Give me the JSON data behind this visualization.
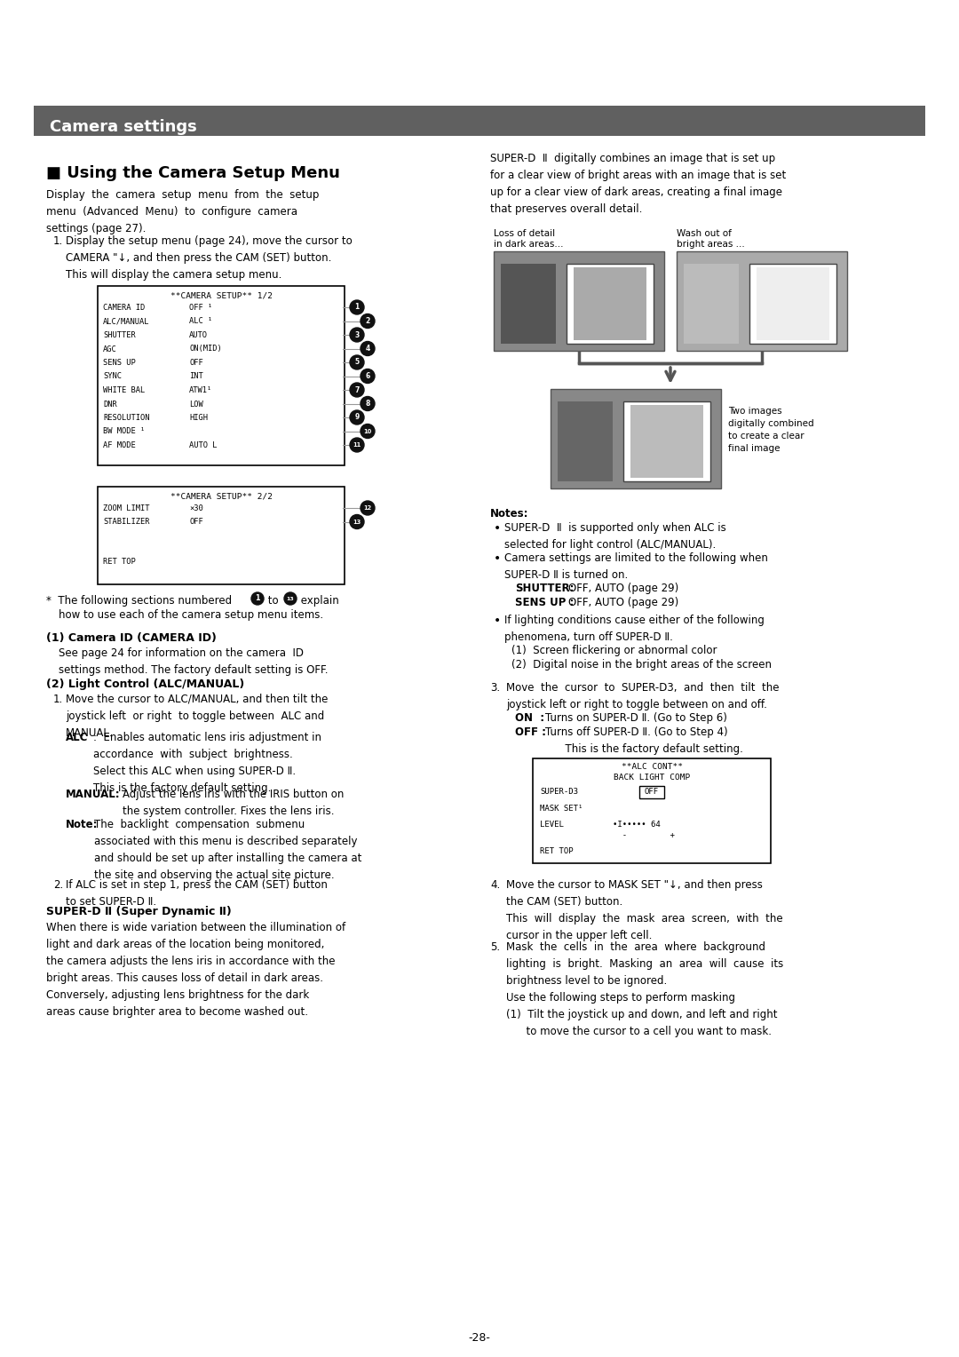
{
  "page_bg": "#ffffff",
  "header_bg": "#606060",
  "header_text": "Camera settings",
  "header_text_color": "#ffffff",
  "page_number": "-28-",
  "menu1_title": "**CAMERA SETUP** 1/2",
  "menu1_items": [
    [
      "CAMERA ID",
      "OFF ¹"
    ],
    [
      "ALC/MANUAL",
      "ALC ¹"
    ],
    [
      "SHUTTER",
      "AUTO"
    ],
    [
      "AGC",
      "ON(MID)"
    ],
    [
      "SENS UP",
      "OFF"
    ],
    [
      "SYNC",
      "INT"
    ],
    [
      "WHITE BAL",
      "ATW1¹"
    ],
    [
      "DNR",
      "LOW"
    ],
    [
      "RESOLUTION",
      "HIGH"
    ],
    [
      "BW MODE ¹",
      ""
    ],
    [
      "AF MODE",
      "AUTO L"
    ]
  ],
  "menu1_numbers": [
    "1",
    "2",
    "3",
    "4",
    "5",
    "6",
    "7",
    "8",
    "9",
    "10",
    "11"
  ],
  "menu2_title": "**CAMERA SETUP** 2/2",
  "menu2_items": [
    [
      "ZOOM LIMIT",
      "×30"
    ],
    [
      "STABILIZER",
      "OFF"
    ]
  ],
  "menu2_numbers": [
    "12",
    "13"
  ],
  "alc_box_title1": "**ALC CONT**",
  "alc_box_title2": "BACK LIGHT COMP",
  "alc_item1_label": "SUPER-D3",
  "alc_item1_val": "OFF",
  "alc_item2_label": "MASK SET¹",
  "alc_item3_label": "LEVEL",
  "alc_item3_val": "•I••••• 64",
  "alc_level_minus": "-",
  "alc_level_plus": "+",
  "loss_label1": "Loss of detail",
  "loss_label2": "in dark areas...",
  "wash_label1": "Wash out of",
  "wash_label2": "bright areas ...",
  "two_images_label": "Two images\ndigitally combined\nto create a clear\nfinal image"
}
